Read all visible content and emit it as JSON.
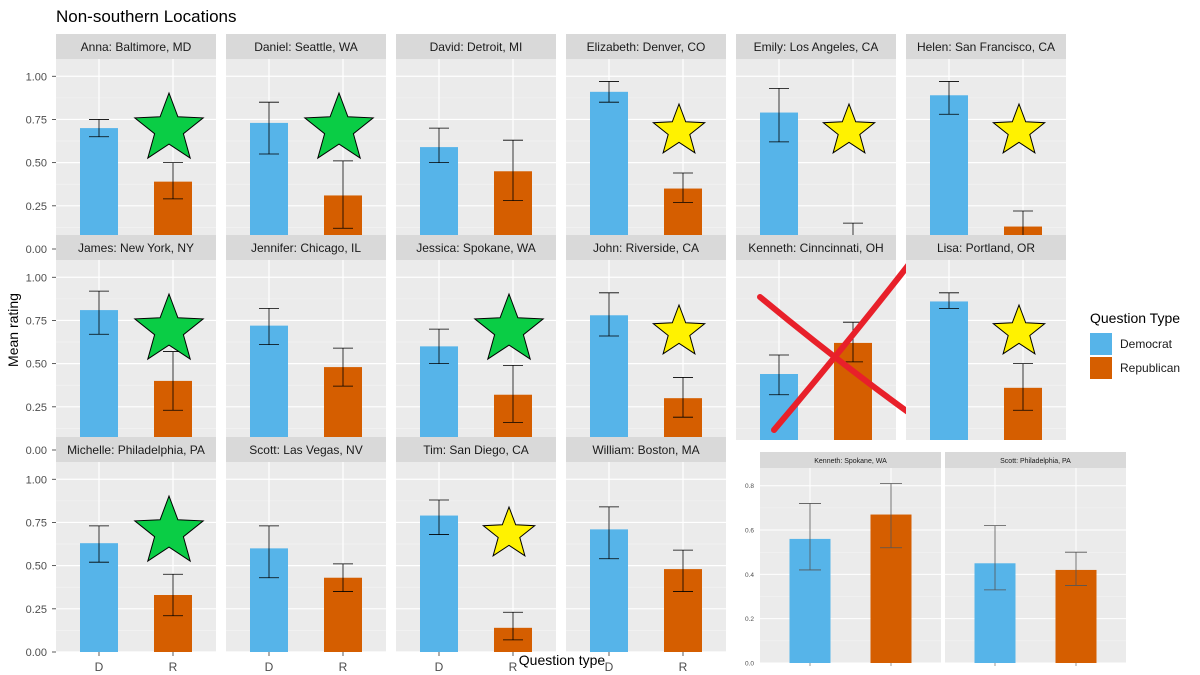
{
  "chart_data": {
    "type": "bar",
    "title": "Non-southern Locations",
    "xlabel": "Question type",
    "ylabel": "Mean rating",
    "categories": [
      "D",
      "R"
    ],
    "ylim": [
      0,
      1.1
    ],
    "yticks": [
      "0.00",
      "0.25",
      "0.50",
      "0.75",
      "1.00"
    ],
    "legend": {
      "title": "Question Type",
      "placement": "right",
      "items": [
        {
          "label": "Democrat",
          "color": "#56B4E9"
        },
        {
          "label": "Republican",
          "color": "#D55E00"
        }
      ]
    },
    "panels": [
      {
        "label": "Anna: Baltimore, MD",
        "values": [
          0.7,
          0.39
        ],
        "err_low": [
          0.65,
          0.29
        ],
        "err_high": [
          0.75,
          0.5
        ],
        "star": "green"
      },
      {
        "label": "Daniel: Seattle, WA",
        "values": [
          0.73,
          0.31
        ],
        "err_low": [
          0.55,
          0.12
        ],
        "err_high": [
          0.85,
          0.51
        ],
        "star": "green"
      },
      {
        "label": "David: Detroit, MI",
        "values": [
          0.59,
          0.45
        ],
        "err_low": [
          0.5,
          0.28
        ],
        "err_high": [
          0.7,
          0.63
        ],
        "star": ""
      },
      {
        "label": "Elizabeth: Denver, CO",
        "values": [
          0.91,
          0.35
        ],
        "err_low": [
          0.85,
          0.27
        ],
        "err_high": [
          0.97,
          0.44
        ],
        "star": "yellow"
      },
      {
        "label": "Emily: Los Angeles, CA",
        "values": [
          0.79,
          0.07
        ],
        "err_low": [
          0.62,
          0.02
        ],
        "err_high": [
          0.93,
          0.15
        ],
        "star": "yellow"
      },
      {
        "label": "Helen: San Francisco, CA",
        "values": [
          0.89,
          0.13
        ],
        "err_low": [
          0.78,
          0.06
        ],
        "err_high": [
          0.97,
          0.22
        ],
        "star": "yellow"
      },
      {
        "label": "James: New York, NY",
        "values": [
          0.81,
          0.4
        ],
        "err_low": [
          0.67,
          0.23
        ],
        "err_high": [
          0.92,
          0.57
        ],
        "star": "green"
      },
      {
        "label": "Jennifer: Chicago, IL",
        "values": [
          0.72,
          0.48
        ],
        "err_low": [
          0.61,
          0.37
        ],
        "err_high": [
          0.82,
          0.59
        ],
        "star": ""
      },
      {
        "label": "Jessica: Spokane, WA",
        "values": [
          0.6,
          0.32
        ],
        "err_low": [
          0.5,
          0.16
        ],
        "err_high": [
          0.7,
          0.49
        ],
        "star": "green"
      },
      {
        "label": "John: Riverside, CA",
        "values": [
          0.78,
          0.3
        ],
        "err_low": [
          0.66,
          0.19
        ],
        "err_high": [
          0.91,
          0.42
        ],
        "star": "yellow"
      },
      {
        "label": "Kenneth: Cinncinnati, OH",
        "values": [
          0.44,
          0.62
        ],
        "err_low": [
          0.32,
          0.51
        ],
        "err_high": [
          0.55,
          0.74
        ],
        "star": "",
        "crossed": true
      },
      {
        "label": "Lisa: Portland, OR",
        "values": [
          0.86,
          0.36
        ],
        "err_low": [
          0.82,
          0.23
        ],
        "err_high": [
          0.91,
          0.5
        ],
        "star": "yellow"
      },
      {
        "label": "Michelle: Philadelphia, PA",
        "values": [
          0.63,
          0.33
        ],
        "err_low": [
          0.52,
          0.21
        ],
        "err_high": [
          0.73,
          0.45
        ],
        "star": "green"
      },
      {
        "label": "Scott: Las Vegas, NV",
        "values": [
          0.6,
          0.43
        ],
        "err_low": [
          0.43,
          0.35
        ],
        "err_high": [
          0.73,
          0.51
        ],
        "star": ""
      },
      {
        "label": "Tim: San Diego, CA",
        "values": [
          0.79,
          0.14
        ],
        "err_low": [
          0.68,
          0.07
        ],
        "err_high": [
          0.88,
          0.23
        ],
        "star": "yellow"
      },
      {
        "label": "William: Boston, MA",
        "values": [
          0.71,
          0.48
        ],
        "err_low": [
          0.54,
          0.35
        ],
        "err_high": [
          0.84,
          0.59
        ],
        "star": ""
      }
    ],
    "inset": {
      "yticks": [
        "0.0",
        "0.2",
        "0.4",
        "0.6",
        "0.8"
      ],
      "ylim": [
        0,
        0.88
      ],
      "panels": [
        {
          "label": "Kenneth: Spokane, WA",
          "values": [
            0.56,
            0.67
          ],
          "err_low": [
            0.42,
            0.52
          ],
          "err_high": [
            0.72,
            0.81
          ]
        },
        {
          "label": "Scott: Philadelphia, PA",
          "values": [
            0.45,
            0.42
          ],
          "err_low": [
            0.33,
            0.35
          ],
          "err_high": [
            0.62,
            0.5
          ]
        }
      ]
    },
    "colors": {
      "star_green": "#0ACD45",
      "star_yellow": "#FFF200",
      "cross": "#E8202A",
      "panel_bg": "#EBEBEB",
      "strip_bg": "#D9D9D9"
    }
  }
}
